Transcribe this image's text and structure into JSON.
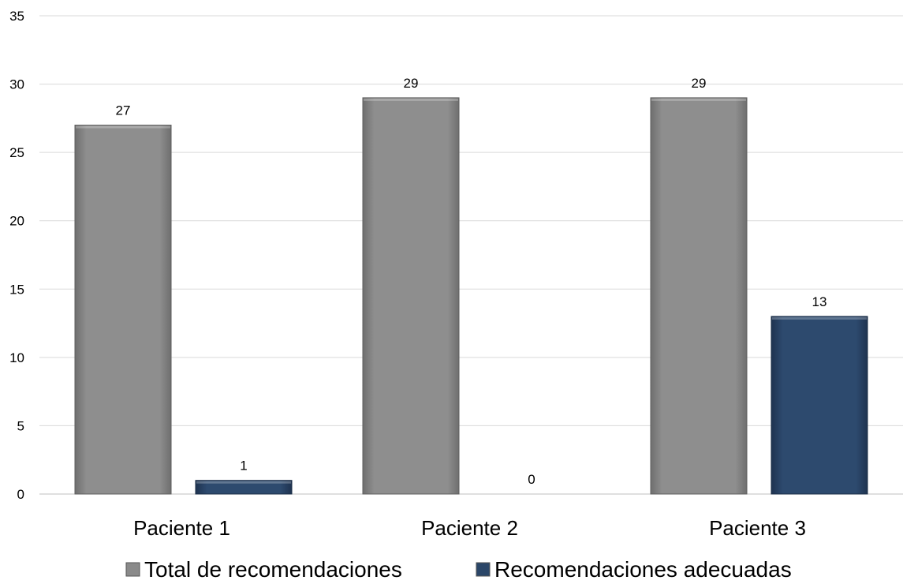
{
  "chart_data": {
    "type": "bar",
    "title": "",
    "xlabel": "",
    "ylabel": "",
    "categories": [
      "Paciente 1",
      "Paciente 2",
      "Paciente 3"
    ],
    "series": [
      {
        "name": "Total de recomendaciones",
        "values": [
          27,
          29,
          29
        ],
        "color": "#8a8a8a"
      },
      {
        "name": "Recomendaciones adecuadas",
        "values": [
          1,
          0,
          13
        ],
        "color": "#2b4668"
      }
    ],
    "ylim": [
      0,
      35
    ],
    "yticks": [
      0,
      5,
      10,
      15,
      20,
      25,
      30,
      35
    ],
    "grid": true,
    "legend_position": "bottom"
  }
}
